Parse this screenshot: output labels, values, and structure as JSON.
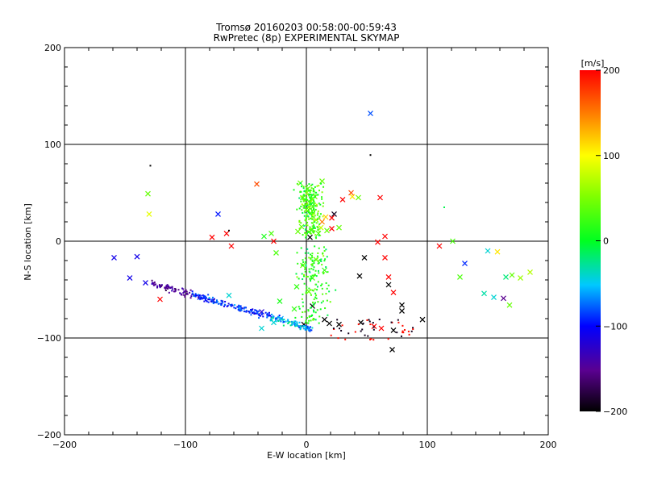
{
  "chart_data": {
    "type": "scatter",
    "title": "Tromsø 20160203 00:58:00-00:59:43",
    "subtitle": "RwPretec (8p) EXPERIMENTAL SKYMAP",
    "xlabel": "E-W location [km]",
    "ylabel": "N-S location [km]",
    "xlim": [
      -200,
      200
    ],
    "ylim": [
      -200,
      200
    ],
    "x_ticks": [
      -200,
      -100,
      0,
      100,
      200
    ],
    "y_ticks": [
      -200,
      -100,
      0,
      100,
      200
    ],
    "grid": true,
    "colorbar": {
      "label": "[m/s]",
      "range": [
        -200,
        200
      ],
      "ticks": [
        -200,
        -100,
        0,
        100,
        200
      ],
      "colormap": "black-purple-blue-cyan-green-yellow-red"
    },
    "marker_sizes": [
      "large cross",
      "small dot"
    ],
    "points": [
      {
        "x": 53,
        "y": 132,
        "v": -80,
        "m": "x"
      },
      {
        "x": -131,
        "y": 49,
        "v": 40,
        "m": "x"
      },
      {
        "x": -130,
        "y": 28,
        "v": 90,
        "m": "x"
      },
      {
        "x": -73,
        "y": 28,
        "v": -95,
        "m": "x"
      },
      {
        "x": -41,
        "y": 59,
        "v": 170,
        "m": "x"
      },
      {
        "x": 38,
        "y": 46,
        "v": 110,
        "m": "x"
      },
      {
        "x": 43,
        "y": 45,
        "v": 40,
        "m": "x"
      },
      {
        "x": 37,
        "y": 50,
        "v": 170,
        "m": "x"
      },
      {
        "x": 30,
        "y": 43,
        "v": 200,
        "m": "x"
      },
      {
        "x": 23,
        "y": 28,
        "v": -190,
        "m": "x"
      },
      {
        "x": 21,
        "y": 24,
        "v": 200,
        "m": "x"
      },
      {
        "x": 61,
        "y": 45,
        "v": 200,
        "m": "x"
      },
      {
        "x": -78,
        "y": 4,
        "v": 200,
        "m": "x"
      },
      {
        "x": -66,
        "y": 8,
        "v": 200,
        "m": "x"
      },
      {
        "x": -62,
        "y": -5,
        "v": 200,
        "m": "x"
      },
      {
        "x": -35,
        "y": 5,
        "v": 10,
        "m": "x"
      },
      {
        "x": 59,
        "y": -1,
        "v": 200,
        "m": "x"
      },
      {
        "x": 65,
        "y": 5,
        "v": 200,
        "m": "x"
      },
      {
        "x": 110,
        "y": -5,
        "v": 200,
        "m": "x"
      },
      {
        "x": 121,
        "y": 0,
        "v": 30,
        "m": "x"
      },
      {
        "x": 131,
        "y": -23,
        "v": -90,
        "m": "x"
      },
      {
        "x": 127,
        "y": -37,
        "v": 30,
        "m": "x"
      },
      {
        "x": 150,
        "y": -10,
        "v": -40,
        "m": "x"
      },
      {
        "x": 158,
        "y": -11,
        "v": 110,
        "m": "x"
      },
      {
        "x": 165,
        "y": -37,
        "v": -20,
        "m": "x"
      },
      {
        "x": 170,
        "y": -35,
        "v": 40,
        "m": "x"
      },
      {
        "x": 177,
        "y": -38,
        "v": 60,
        "m": "x"
      },
      {
        "x": 185,
        "y": -32,
        "v": 70,
        "m": "x"
      },
      {
        "x": 147,
        "y": -54,
        "v": -30,
        "m": "x"
      },
      {
        "x": 155,
        "y": -58,
        "v": -40,
        "m": "x"
      },
      {
        "x": 163,
        "y": -59,
        "v": -150,
        "m": "x"
      },
      {
        "x": 168,
        "y": -66,
        "v": 40,
        "m": "x"
      },
      {
        "x": -159,
        "y": -17,
        "v": -110,
        "m": "x"
      },
      {
        "x": -140,
        "y": -16,
        "v": -110,
        "m": "x"
      },
      {
        "x": -146,
        "y": -38,
        "v": -110,
        "m": "x"
      },
      {
        "x": -133,
        "y": -43,
        "v": -110,
        "m": "x"
      },
      {
        "x": -121,
        "y": -60,
        "v": 200,
        "m": "x"
      },
      {
        "x": -88,
        "y": -58,
        "v": -90,
        "m": "x"
      },
      {
        "x": -64,
        "y": -56,
        "v": -40,
        "m": "x"
      },
      {
        "x": -37,
        "y": -73,
        "v": -120,
        "m": "x"
      },
      {
        "x": -37,
        "y": -90,
        "v": -40,
        "m": "x"
      },
      {
        "x": -27,
        "y": -84,
        "v": -40,
        "m": "x"
      },
      {
        "x": -21,
        "y": -80,
        "v": -60,
        "m": "x"
      },
      {
        "x": -2,
        "y": -86,
        "v": -200,
        "m": "x"
      },
      {
        "x": 5,
        "y": -67,
        "v": -200,
        "m": "x"
      },
      {
        "x": 15,
        "y": -81,
        "v": -200,
        "m": "x"
      },
      {
        "x": 19,
        "y": -85,
        "v": -200,
        "m": "x"
      },
      {
        "x": 27,
        "y": -86,
        "v": -200,
        "m": "x"
      },
      {
        "x": 45,
        "y": -84,
        "v": -200,
        "m": "x"
      },
      {
        "x": 56,
        "y": -88,
        "v": 200,
        "m": "x"
      },
      {
        "x": 62,
        "y": -90,
        "v": 200,
        "m": "x"
      },
      {
        "x": 72,
        "y": -92,
        "v": -200,
        "m": "x"
      },
      {
        "x": 79,
        "y": -72,
        "v": -200,
        "m": "x"
      },
      {
        "x": 79,
        "y": -66,
        "v": -200,
        "m": "x"
      },
      {
        "x": 96,
        "y": -81,
        "v": -200,
        "m": "x"
      },
      {
        "x": 71,
        "y": -112,
        "v": -200,
        "m": "x"
      },
      {
        "x": 68,
        "y": -45,
        "v": -200,
        "m": "x"
      },
      {
        "x": 44,
        "y": -36,
        "v": -200,
        "m": "x"
      },
      {
        "x": 48,
        "y": -17,
        "v": -200,
        "m": "x"
      },
      {
        "x": 72,
        "y": -53,
        "v": 200,
        "m": "x"
      },
      {
        "x": 68,
        "y": -37,
        "v": 200,
        "m": "x"
      },
      {
        "x": 65,
        "y": -17,
        "v": 200,
        "m": "x"
      },
      {
        "x": 1,
        "y": 54,
        "v": 40,
        "m": "x"
      },
      {
        "x": 7,
        "y": 46,
        "v": 50,
        "m": "x"
      },
      {
        "x": -3,
        "y": 45,
        "v": 20,
        "m": "x"
      },
      {
        "x": 4,
        "y": 38,
        "v": 30,
        "m": "x"
      },
      {
        "x": 0,
        "y": 33,
        "v": 40,
        "m": "x"
      },
      {
        "x": -5,
        "y": 60,
        "v": 40,
        "m": "x"
      },
      {
        "x": 13,
        "y": 62,
        "v": 40,
        "m": "x"
      },
      {
        "x": 8,
        "y": 22,
        "v": 60,
        "m": "x"
      },
      {
        "x": 13,
        "y": 20,
        "v": 150,
        "m": "x"
      },
      {
        "x": 16,
        "y": 25,
        "v": 120,
        "m": "x"
      },
      {
        "x": -4,
        "y": 15,
        "v": 40,
        "m": "x"
      },
      {
        "x": 5,
        "y": 12,
        "v": 50,
        "m": "x"
      },
      {
        "x": 12,
        "y": 14,
        "v": 80,
        "m": "x"
      },
      {
        "x": 17,
        "y": 11,
        "v": 40,
        "m": "x"
      },
      {
        "x": 21,
        "y": 13,
        "v": 200,
        "m": "x"
      },
      {
        "x": 27,
        "y": 14,
        "v": 40,
        "m": "x"
      },
      {
        "x": -7,
        "y": 10,
        "v": 40,
        "m": "x"
      },
      {
        "x": 10,
        "y": 8,
        "v": 30,
        "m": "x"
      },
      {
        "x": 3,
        "y": 4,
        "v": -200,
        "m": "x"
      },
      {
        "x": -3,
        "y": -25,
        "v": 40,
        "m": "x"
      },
      {
        "x": 8,
        "y": -19,
        "v": 40,
        "m": "x"
      },
      {
        "x": 15,
        "y": -30,
        "v": 20,
        "m": "x"
      },
      {
        "x": 5,
        "y": -38,
        "v": 30,
        "m": "x"
      },
      {
        "x": -8,
        "y": -47,
        "v": 20,
        "m": "x"
      },
      {
        "x": 2,
        "y": -52,
        "v": 40,
        "m": "x"
      },
      {
        "x": -22,
        "y": -62,
        "v": 10,
        "m": "x"
      },
      {
        "x": -10,
        "y": -70,
        "v": 20,
        "m": "x"
      },
      {
        "x": -25,
        "y": -12,
        "v": 30,
        "m": "x"
      },
      {
        "x": -29,
        "y": 8,
        "v": 30,
        "m": "x"
      },
      {
        "x": -27,
        "y": 0,
        "v": 200,
        "m": "x"
      },
      {
        "x": 53,
        "y": 89,
        "v": -200,
        "m": "d"
      },
      {
        "x": -129,
        "y": 78,
        "v": -200,
        "m": "d"
      },
      {
        "x": -64,
        "y": 11,
        "v": -200,
        "m": "d"
      },
      {
        "x": 114,
        "y": 35,
        "v": -10,
        "m": "d"
      }
    ]
  }
}
